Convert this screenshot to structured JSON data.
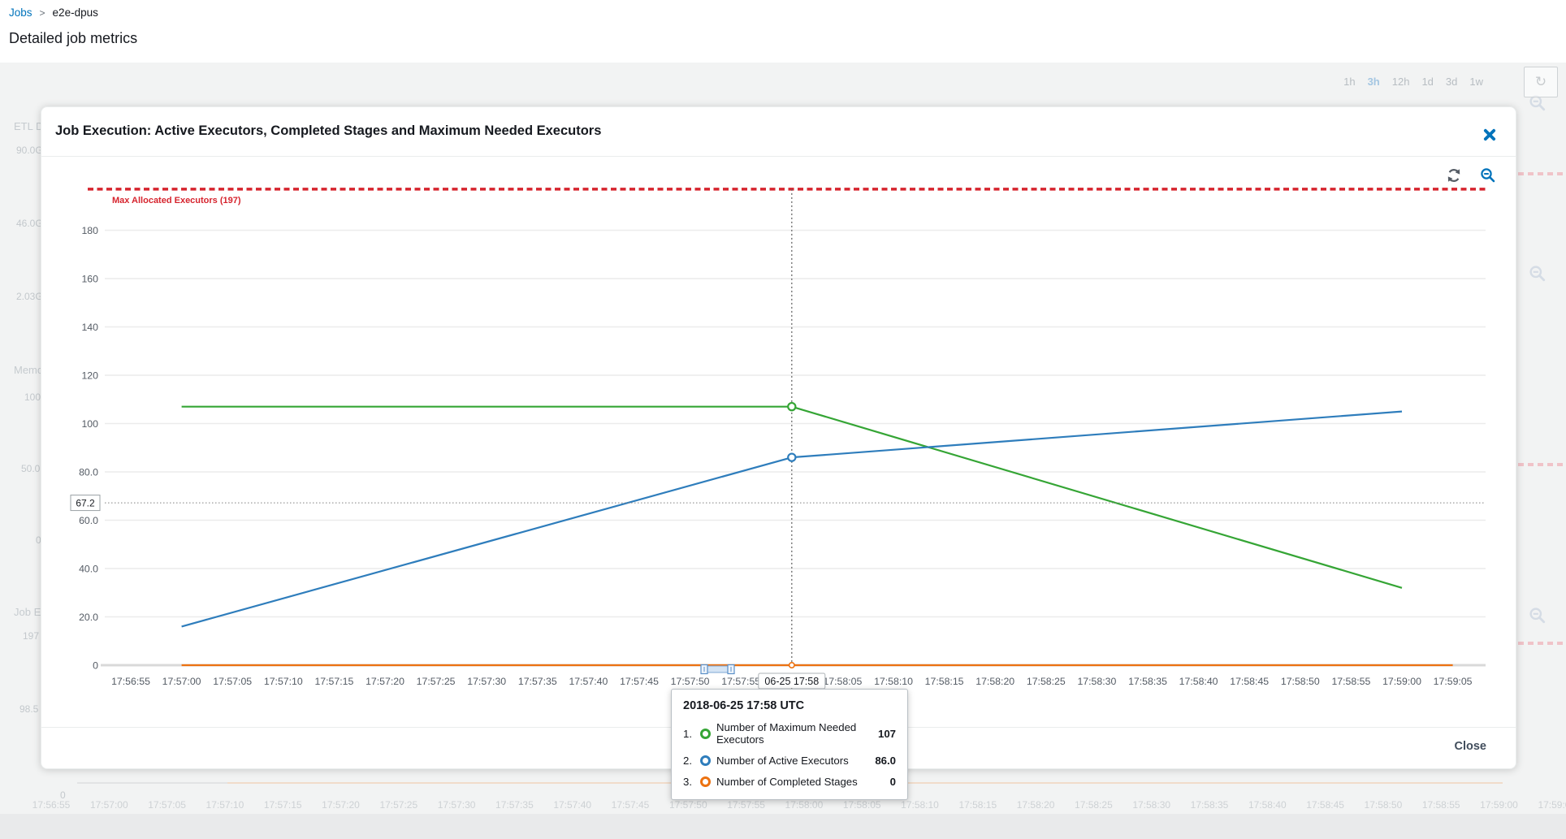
{
  "breadcrumb": {
    "link_label": "Jobs",
    "separator": ">",
    "current": "e2e-dpus"
  },
  "page": {
    "title": "Detailed job metrics"
  },
  "time_range": {
    "options": [
      "1h",
      "3h",
      "12h",
      "1d",
      "3d",
      "1w"
    ],
    "selected": "3h"
  },
  "background": {
    "left_labels": [
      "ETL D",
      "90.0G",
      "46.0G",
      "2.03G",
      "Memo",
      "100",
      "50.0",
      "0",
      "Job Ex",
      "197",
      "98.5"
    ],
    "bottom_zero_label": "0"
  },
  "modal": {
    "title": "Job Execution: Active Executors, Completed Stages and Maximum Needed Executors",
    "close_button_label": "Close"
  },
  "tooltip": {
    "title": "2018-06-25 17:58 UTC",
    "rows": [
      {
        "index": "1.",
        "label": "Number of Maximum Needed Executors",
        "value": "107",
        "color": "#35a535"
      },
      {
        "index": "2.",
        "label": "Number of Active Executors",
        "value": "86.0",
        "color": "#2e7dbc"
      },
      {
        "index": "3.",
        "label": "Number of Completed Stages",
        "value": "0",
        "color": "#ec7211"
      }
    ]
  },
  "chart_data": {
    "type": "line",
    "title": "Job Execution: Active Executors, Completed Stages and Maximum Needed Executors",
    "x_ticks": [
      "17:56:55",
      "17:57:00",
      "17:57:05",
      "17:57:10",
      "17:57:15",
      "17:57:20",
      "17:57:25",
      "17:57:30",
      "17:57:35",
      "17:57:40",
      "17:57:45",
      "17:57:50",
      "17:57:55",
      "17:58:00",
      "17:58:05",
      "17:58:10",
      "17:58:15",
      "17:58:20",
      "17:58:25",
      "17:58:30",
      "17:58:35",
      "17:58:40",
      "17:58:45",
      "17:58:50",
      "17:58:55",
      "17:59:00",
      "17:59:05"
    ],
    "y_ticks": [
      {
        "value": 0,
        "label": "0"
      },
      {
        "value": 20,
        "label": "20.0"
      },
      {
        "value": 40,
        "label": "40.0"
      },
      {
        "value": 60,
        "label": "60.0"
      },
      {
        "value": 80,
        "label": "80.0"
      },
      {
        "value": 100,
        "label": "100"
      },
      {
        "value": 120,
        "label": "120"
      },
      {
        "value": 140,
        "label": "140"
      },
      {
        "value": 160,
        "label": "160"
      },
      {
        "value": 180,
        "label": "180"
      }
    ],
    "ylim": [
      0,
      205
    ],
    "grid": true,
    "max_line": {
      "label": "Max Allocated Executors (197)",
      "value": 197,
      "color": "#d6242e"
    },
    "hover_line": {
      "label": "67.2",
      "value": 67.2
    },
    "crosshair": {
      "x": "17:58:00",
      "axis_label": "06-25 17:58",
      "values": [
        107,
        86,
        0
      ]
    },
    "series": [
      {
        "name": "Number of Maximum Needed Executors",
        "color": "#35a535",
        "points": [
          [
            "17:57:00",
            107
          ],
          [
            "17:58:00",
            107
          ],
          [
            "17:59:00",
            32
          ]
        ]
      },
      {
        "name": "Number of Active Executors",
        "color": "#2e7dbc",
        "points": [
          [
            "17:57:00",
            16
          ],
          [
            "17:58:00",
            86
          ],
          [
            "17:59:00",
            105
          ]
        ]
      },
      {
        "name": "Number of Completed Stages",
        "color": "#ec7211",
        "points": [
          [
            "17:57:00",
            0
          ],
          [
            "17:58:00",
            0
          ],
          [
            "17:59:05",
            0
          ]
        ]
      }
    ]
  }
}
